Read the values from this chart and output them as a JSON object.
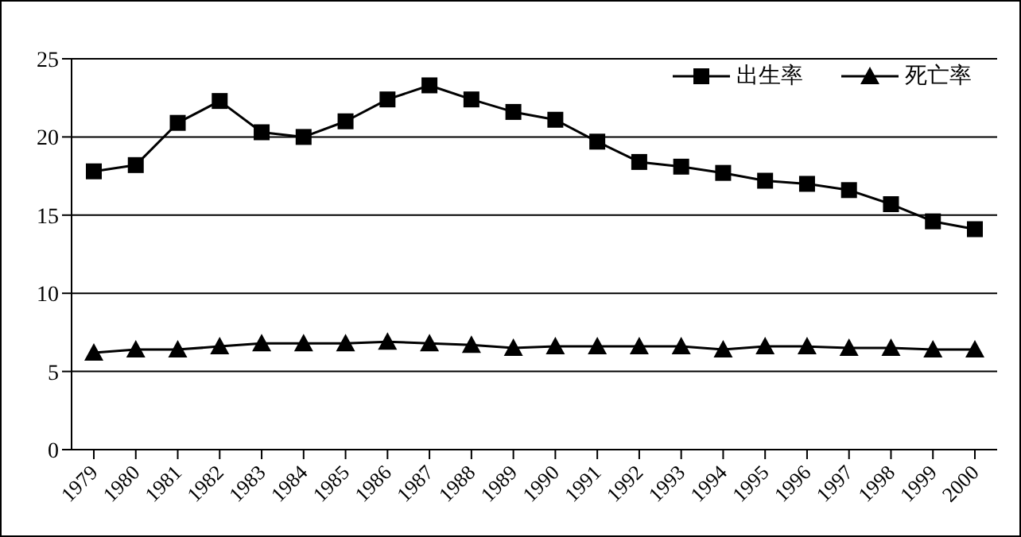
{
  "chart_data": {
    "type": "line",
    "categories": [
      "1979",
      "1980",
      "1981",
      "1982",
      "1983",
      "1984",
      "1985",
      "1986",
      "1987",
      "1988",
      "1989",
      "1990",
      "1991",
      "1992",
      "1993",
      "1994",
      "1995",
      "1996",
      "1997",
      "1998",
      "1999",
      "2000"
    ],
    "series": [
      {
        "name": "出生率",
        "color": "#000000",
        "marker": "square",
        "values": [
          17.8,
          18.2,
          20.9,
          22.3,
          20.3,
          20.0,
          21.0,
          22.4,
          23.3,
          22.4,
          21.6,
          21.1,
          19.7,
          18.4,
          18.1,
          17.7,
          17.2,
          17.0,
          16.6,
          15.7,
          14.6,
          14.1
        ]
      },
      {
        "name": "死亡率",
        "color": "#000000",
        "marker": "triangle",
        "values": [
          6.2,
          6.4,
          6.4,
          6.6,
          6.8,
          6.8,
          6.8,
          6.9,
          6.8,
          6.7,
          6.5,
          6.6,
          6.6,
          6.6,
          6.6,
          6.4,
          6.6,
          6.6,
          6.5,
          6.5,
          6.4,
          6.4
        ]
      }
    ],
    "ylim": [
      0,
      25
    ],
    "yticks": [
      0,
      5,
      10,
      15,
      20,
      25
    ],
    "grid": "y",
    "legend": "top right",
    "line_style": "solid"
  }
}
